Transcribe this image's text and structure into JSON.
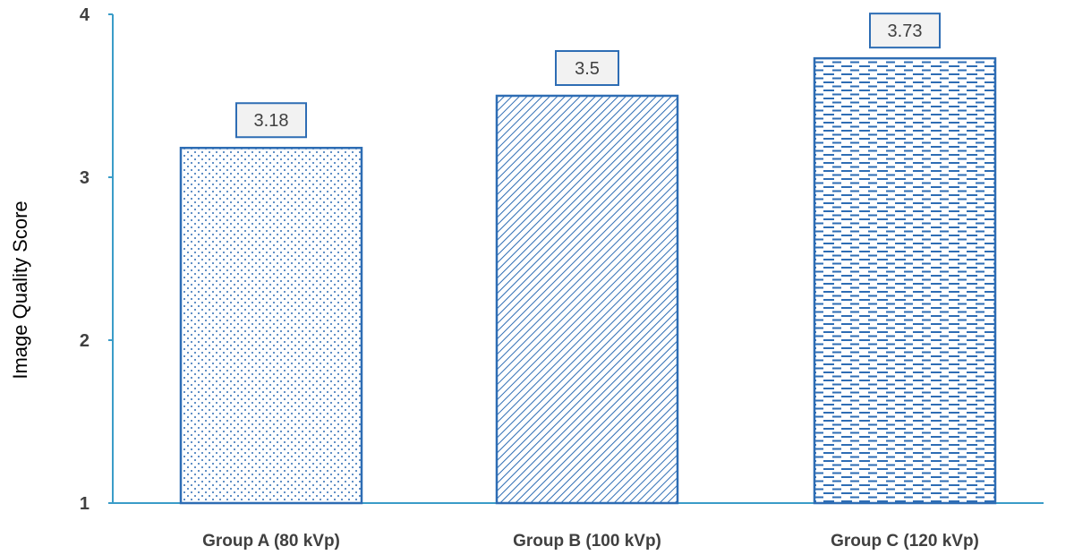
{
  "chart_data": {
    "type": "bar",
    "categories": [
      "Group A (80 kVp)",
      "Group B (100 kVp)",
      "Group C (120 kVp)"
    ],
    "values": [
      3.18,
      3.5,
      3.73
    ],
    "data_labels": [
      "3.18",
      "3.5",
      "3.73"
    ],
    "title": "",
    "xlabel": "",
    "ylabel": "Image Quality Score",
    "ylim": [
      1,
      4
    ],
    "yticks": [
      1,
      2,
      3,
      4
    ],
    "grid": false,
    "legend": "none",
    "bar_patterns": [
      "dots",
      "diagonal-hatch",
      "horizontal-dashes"
    ],
    "colors": {
      "bar_stroke": "#2e6db4",
      "axis": "#3a9cc8",
      "label_box": "#2e6db4",
      "label_fill": "#f2f2f2"
    }
  }
}
